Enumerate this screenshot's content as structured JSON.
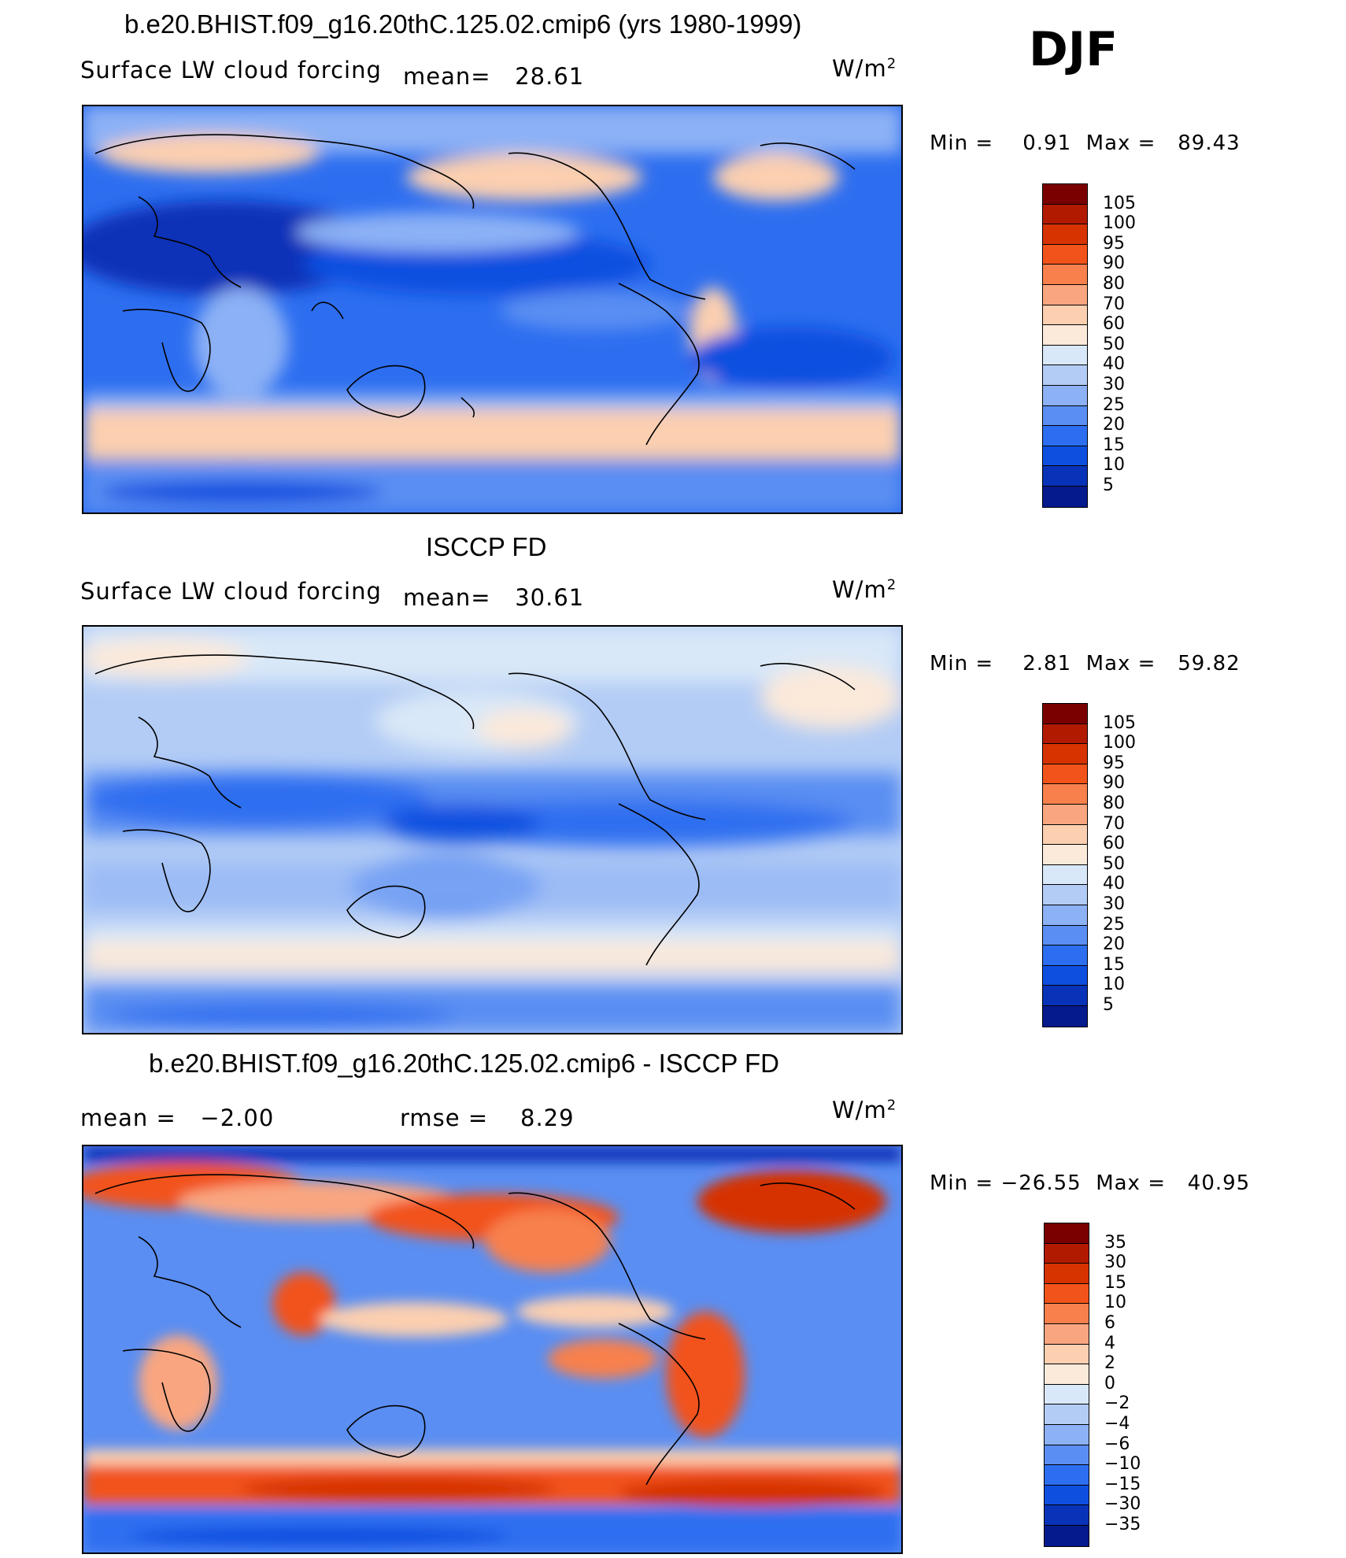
{
  "season": "DJF",
  "panels": [
    {
      "title": "b.e20.BHIST.f09_g16.20thC.125.02.cmip6 (yrs 1980-1999)",
      "variable": "Surface LW cloud forcing",
      "stat1": "mean=   28.61",
      "stat2": "",
      "unit_base": "W/m",
      "unit_exp": "2",
      "minmax": "Min =    0.91  Max =   89.43",
      "colorbar": {
        "labels": [
          "105",
          "100",
          "95",
          "90",
          "80",
          "70",
          "60",
          "50",
          "40",
          "30",
          "25",
          "20",
          "15",
          "10",
          "5"
        ],
        "colors": [
          "#7a0000",
          "#b21a00",
          "#d63300",
          "#f2531a",
          "#f7804d",
          "#f9a680",
          "#fbcfb0",
          "#fbe9da",
          "#d9e8f8",
          "#b3ccf5",
          "#8cb1f5",
          "#5a8ef2",
          "#2d6ef0",
          "#0f4fe0",
          "#0833b8",
          "#051a8c"
        ]
      }
    },
    {
      "title": "ISCCP FD",
      "variable": "Surface LW cloud forcing",
      "stat1": "mean=   30.61",
      "stat2": "",
      "unit_base": "W/m",
      "unit_exp": "2",
      "minmax": "Min =    2.81  Max =   59.82",
      "colorbar": {
        "labels": [
          "105",
          "100",
          "95",
          "90",
          "80",
          "70",
          "60",
          "50",
          "40",
          "30",
          "25",
          "20",
          "15",
          "10",
          "5"
        ],
        "colors": [
          "#7a0000",
          "#b21a00",
          "#d63300",
          "#f2531a",
          "#f7804d",
          "#f9a680",
          "#fbcfb0",
          "#fbe9da",
          "#d9e8f8",
          "#b3ccf5",
          "#8cb1f5",
          "#5a8ef2",
          "#2d6ef0",
          "#0f4fe0",
          "#0833b8",
          "#051a8c"
        ]
      }
    },
    {
      "title": "b.e20.BHIST.f09_g16.20thC.125.02.cmip6 - ISCCP FD",
      "variable": "",
      "stat1": "mean =   −2.00",
      "stat2": "rmse =    8.29",
      "unit_base": "W/m",
      "unit_exp": "2",
      "minmax": "Min = −26.55  Max =   40.95",
      "colorbar": {
        "labels": [
          "35",
          "30",
          "15",
          "10",
          "6",
          "4",
          "2",
          "0",
          "−2",
          "−4",
          "−6",
          "−10",
          "−15",
          "−30",
          "−35"
        ],
        "colors": [
          "#7a0000",
          "#b21a00",
          "#d63300",
          "#f2531a",
          "#f7804d",
          "#f9a680",
          "#fbcfb0",
          "#fbe9da",
          "#d9e8f8",
          "#b3ccf5",
          "#8cb1f5",
          "#5a8ef2",
          "#2d6ef0",
          "#0f4fe0",
          "#0833b8",
          "#051a8c"
        ]
      }
    }
  ]
}
